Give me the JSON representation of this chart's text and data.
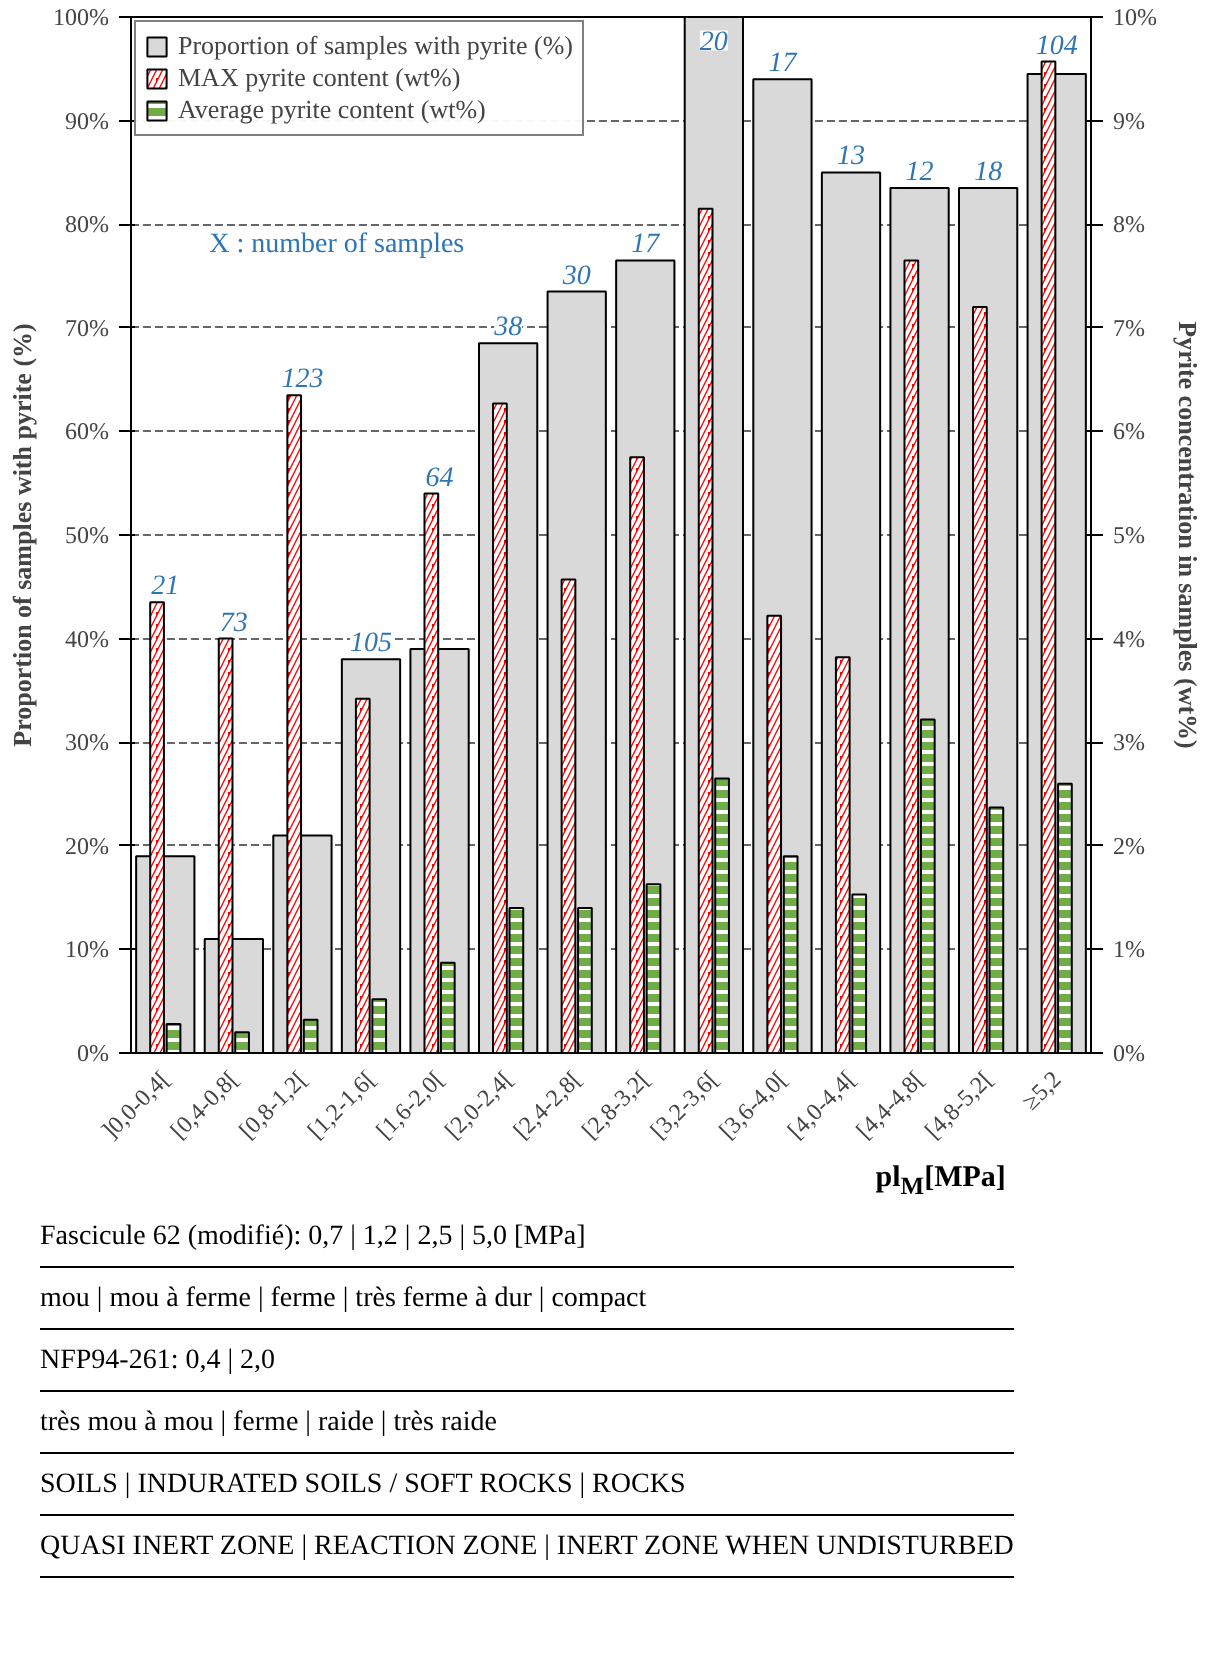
{
  "chart_data": {
    "type": "bar",
    "categories": [
      "]0,0-0,4[",
      "[0,4-0,8[",
      "[0,8-1,2[",
      "[1,2-1,6[",
      "[1,6-2,0[",
      "[2,0-2,4[",
      "[2,4-2,8[",
      "[2,8-3,2[",
      "[3,2-3,6[",
      "[3,6-4,0[",
      "[4,0-4,4[",
      "[4,4-4,8[",
      "[4,8-5,2[",
      "≥5,2"
    ],
    "series": [
      {
        "name": "Proportion of samples with pyrite (%)",
        "color": "#d9d9d9",
        "values": [
          19,
          11,
          21,
          38,
          39,
          68.5,
          73.5,
          76.5,
          100,
          94,
          85,
          83.5,
          83.5,
          94.5
        ]
      },
      {
        "name": "MAX pyrite content (wt%)",
        "color": "#ff0000",
        "axis": "y2",
        "values": [
          4.35,
          4.0,
          6.35,
          3.42,
          5.4,
          6.27,
          4.57,
          5.75,
          8.15,
          4.22,
          3.82,
          7.65,
          7.2,
          9.57
        ]
      },
      {
        "name": "Average pyrite content (wt%)",
        "color": "#70ad47",
        "axis": "y2",
        "values": [
          0.28,
          0.2,
          0.32,
          0.52,
          0.87,
          1.4,
          1.4,
          1.63,
          2.65,
          1.9,
          1.53,
          3.22,
          2.37,
          2.6
        ]
      }
    ],
    "xlabel": "pl$_{M}$[MPa]",
    "ylabel": "Proportion of samples with pyrite (%)",
    "y2label": "Pyrite concentration in samples (wt%)",
    "ylim": [
      0,
      100
    ],
    "yticks": [
      {
        "value": 0,
        "label": "0%"
      },
      {
        "value": 10,
        "label": "10%"
      },
      {
        "value": 20,
        "label": "20%"
      },
      {
        "value": 30,
        "label": "30%"
      },
      {
        "value": 40,
        "label": "40%"
      },
      {
        "value": 50,
        "label": "50%"
      },
      {
        "value": 60,
        "label": "60%"
      },
      {
        "value": 70,
        "label": "70%"
      },
      {
        "value": 80,
        "label": "80%"
      },
      {
        "value": 90,
        "label": "90%"
      },
      {
        "value": 100,
        "label": "100%"
      }
    ],
    "y2lim": [
      0,
      10
    ],
    "y2ticks": [
      {
        "value": 0,
        "label": "0%"
      },
      {
        "value": 1,
        "label": "1%"
      },
      {
        "value": 2,
        "label": "2%"
      },
      {
        "value": 3,
        "label": "3%"
      },
      {
        "value": 4,
        "label": "4%"
      },
      {
        "value": 5,
        "label": "5%"
      },
      {
        "value": 6,
        "label": "6%"
      },
      {
        "value": 7,
        "label": "7%"
      },
      {
        "value": 8,
        "label": "8%"
      },
      {
        "value": 9,
        "label": "9%"
      },
      {
        "value": 10,
        "label": "10%"
      }
    ],
    "grid": "y",
    "legend": "top left",
    "annotations": [
      "21",
      "73",
      "123",
      "105",
      "64",
      "38",
      "30",
      "17",
      "20",
      "17",
      "13",
      "12",
      "18",
      "104",
      "X : number of samples",
      "Fascicule 62 (modifié): 0,7 | 1,2 | 2,5 | 5,0 [MPa]",
      "mou | mou à ferme | ferme | très ferme à dur | compact",
      "NFP94-261: 0,4 | 2,0",
      "très mou à mou | ferme | raide | très raide",
      "SOILS | INDURATED SOILS / SOFT ROCKS | ROCKS",
      "QUASI INERT ZONE | REACTION ZONE | INERT ZONE WHEN UNDISTURBED"
    ]
  }
}
